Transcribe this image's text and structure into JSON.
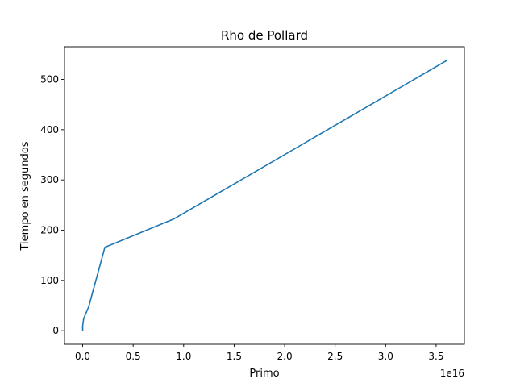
{
  "chart_data": {
    "type": "line",
    "title": "Rho de Pollard",
    "xlabel": "Primo",
    "ylabel": "Tiempo en segundos",
    "x_offset_label": "1e16",
    "xlim": [
      -0.18,
      3.78
    ],
    "ylim": [
      -27,
      565
    ],
    "x_ticks": [
      0.0,
      0.5,
      1.0,
      1.5,
      2.0,
      2.5,
      3.0,
      3.5
    ],
    "x_tick_labels": [
      "0.0",
      "0.5",
      "1.0",
      "1.5",
      "2.0",
      "2.5",
      "3.0",
      "3.5"
    ],
    "y_ticks": [
      0,
      100,
      200,
      300,
      400,
      500
    ],
    "y_tick_labels": [
      "0",
      "100",
      "200",
      "300",
      "400",
      "500"
    ],
    "grid": false,
    "series": [
      {
        "color": "#1f77b4",
        "x": [
          0.0,
          0.0,
          0.01,
          0.06,
          0.22,
          0.9,
          3.6
        ],
        "y": [
          0,
          10,
          24,
          48,
          166,
          222,
          537
        ]
      }
    ]
  }
}
